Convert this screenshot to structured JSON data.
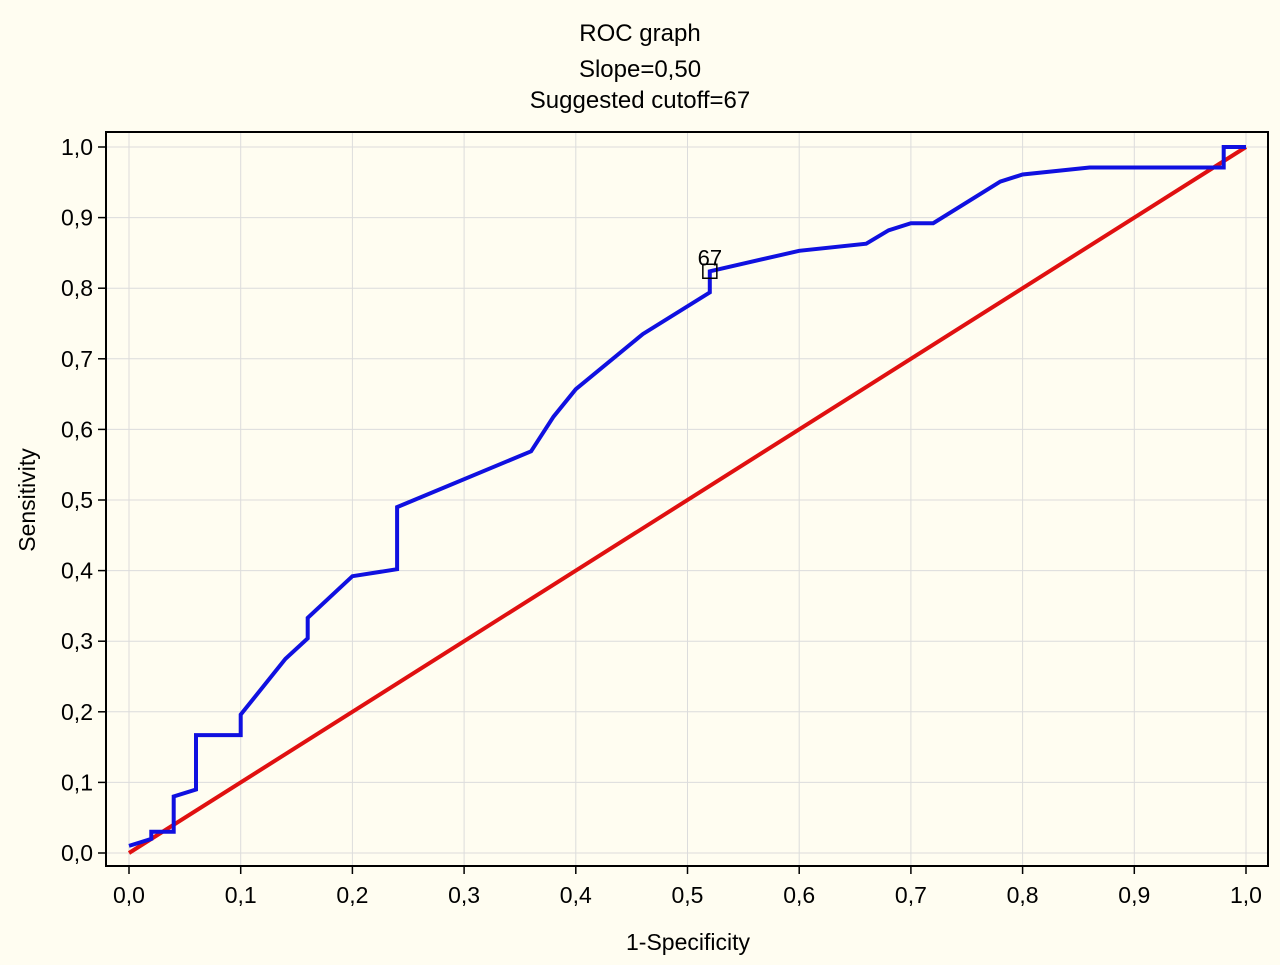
{
  "chart_data": {
    "type": "line",
    "title_lines": [
      "ROC graph",
      "Slope=0,50",
      "Suggested cutoff=67"
    ],
    "xlabel": "1-Specificity",
    "ylabel": "Sensitivity",
    "xlim": [
      0,
      1
    ],
    "ylim": [
      0,
      1
    ],
    "x_ticks": [
      0,
      0.1,
      0.2,
      0.3,
      0.4,
      0.5,
      0.6,
      0.7,
      0.8,
      0.9,
      1.0
    ],
    "y_ticks": [
      0,
      0.1,
      0.2,
      0.3,
      0.4,
      0.5,
      0.6,
      0.7,
      0.8,
      0.9,
      1.0
    ],
    "x_tick_labels": [
      "0,0",
      "0,1",
      "0,2",
      "0,3",
      "0,4",
      "0,5",
      "0,6",
      "0,7",
      "0,8",
      "0,9",
      "1,0"
    ],
    "y_tick_labels": [
      "0,0",
      "0,1",
      "0,2",
      "0,3",
      "0,4",
      "0,5",
      "0,6",
      "0,7",
      "0,8",
      "0,9",
      "1,0"
    ],
    "grid": true,
    "series": [
      {
        "color": "#1010e0",
        "points": [
          [
            0.0,
            0.01
          ],
          [
            0.02,
            0.02
          ],
          [
            0.02,
            0.03
          ],
          [
            0.04,
            0.03
          ],
          [
            0.04,
            0.08
          ],
          [
            0.06,
            0.09
          ],
          [
            0.06,
            0.167
          ],
          [
            0.1,
            0.167
          ],
          [
            0.1,
            0.196
          ],
          [
            0.14,
            0.275
          ],
          [
            0.16,
            0.304
          ],
          [
            0.16,
            0.333
          ],
          [
            0.2,
            0.392
          ],
          [
            0.24,
            0.402
          ],
          [
            0.24,
            0.49
          ],
          [
            0.36,
            0.569
          ],
          [
            0.38,
            0.618
          ],
          [
            0.4,
            0.657
          ],
          [
            0.46,
            0.735
          ],
          [
            0.52,
            0.794
          ],
          [
            0.52,
            0.824
          ],
          [
            0.6,
            0.853
          ],
          [
            0.66,
            0.863
          ],
          [
            0.68,
            0.882
          ],
          [
            0.7,
            0.892
          ],
          [
            0.72,
            0.892
          ],
          [
            0.78,
            0.951
          ],
          [
            0.8,
            0.961
          ],
          [
            0.86,
            0.971
          ],
          [
            0.98,
            0.971
          ],
          [
            0.98,
            1.0
          ],
          [
            1.0,
            1.0
          ]
        ]
      },
      {
        "color": "#e01010",
        "points": [
          [
            0,
            0
          ],
          [
            1,
            1
          ]
        ]
      }
    ],
    "annotations": [
      {
        "label": "67",
        "x": 0.52,
        "y": 0.824
      }
    ]
  }
}
